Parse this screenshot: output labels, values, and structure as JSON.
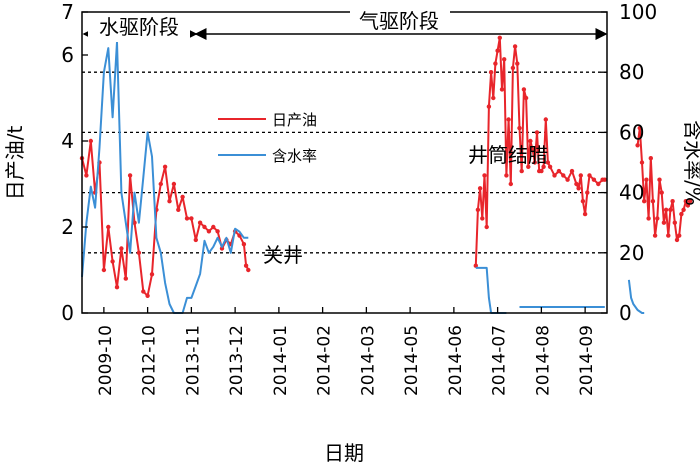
{
  "chart_data": {
    "type": "line",
    "xlabel": "日期",
    "ylabel_left": "日产油/t",
    "ylabel_right": "含水率/%",
    "ylim_left": [
      0,
      7
    ],
    "ylim_right": [
      0,
      100
    ],
    "left_ticks": [
      0,
      2,
      4,
      6,
      7
    ],
    "right_ticks": [
      0,
      20,
      40,
      60,
      80,
      100
    ],
    "categories": [
      "2009-10",
      "2012-10",
      "2013-11",
      "2013-12",
      "2014-01",
      "2014-02",
      "2014-03",
      "2014-05",
      "2014-06",
      "2014-07",
      "2014-08",
      "2014-09"
    ],
    "grid": "dashed horizontal",
    "legend_position": "upper-left-center",
    "annotations": {
      "stage_water": "水驱阶段",
      "stage_gas": "气驱阶段",
      "shut_in": "关井",
      "wellbore_wax": "井筒结腊"
    },
    "series": [
      {
        "name": "日产油",
        "axis": "left",
        "color": "#e8252b",
        "segments": [
          [
            [
              0.0,
              3.6
            ],
            [
              0.1,
              3.2
            ],
            [
              0.2,
              4.0
            ],
            [
              0.3,
              2.8
            ],
            [
              0.4,
              3.5
            ],
            [
              0.5,
              1.0
            ],
            [
              0.6,
              2.0
            ],
            [
              0.7,
              1.2
            ],
            [
              0.8,
              0.6
            ],
            [
              0.9,
              1.5
            ],
            [
              1.0,
              0.8
            ],
            [
              1.1,
              3.2
            ],
            [
              1.2,
              2.1
            ],
            [
              1.3,
              1.4
            ],
            [
              1.4,
              0.5
            ],
            [
              1.5,
              0.4
            ],
            [
              1.6,
              0.9
            ],
            [
              1.7,
              2.4
            ],
            [
              1.8,
              3.0
            ],
            [
              1.9,
              3.4
            ],
            [
              2.0,
              2.6
            ],
            [
              2.1,
              3.0
            ],
            [
              2.2,
              2.4
            ],
            [
              2.3,
              2.7
            ],
            [
              2.4,
              2.2
            ],
            [
              2.5,
              2.2
            ],
            [
              2.6,
              1.7
            ],
            [
              2.7,
              2.1
            ],
            [
              2.8,
              2.0
            ],
            [
              2.9,
              1.9
            ],
            [
              3.0,
              2.0
            ],
            [
              3.1,
              1.9
            ],
            [
              3.2,
              1.5
            ],
            [
              3.3,
              1.7
            ],
            [
              3.4,
              1.6
            ],
            [
              3.5,
              1.9
            ],
            [
              3.6,
              1.8
            ],
            [
              3.7,
              1.6
            ],
            [
              3.75,
              1.1
            ],
            [
              3.8,
              1.0
            ]
          ],
          [
            [
              9.0,
              1.1
            ],
            [
              9.05,
              2.4
            ],
            [
              9.1,
              2.9
            ],
            [
              9.15,
              2.2
            ],
            [
              9.2,
              3.2
            ],
            [
              9.25,
              2.0
            ],
            [
              9.3,
              4.8
            ],
            [
              9.35,
              5.6
            ],
            [
              9.4,
              5.0
            ],
            [
              9.45,
              5.8
            ],
            [
              9.5,
              6.1
            ],
            [
              9.55,
              6.4
            ],
            [
              9.6,
              5.2
            ],
            [
              9.65,
              5.9
            ],
            [
              9.7,
              3.2
            ],
            [
              9.75,
              4.5
            ],
            [
              9.8,
              3.0
            ],
            [
              9.85,
              5.7
            ],
            [
              9.9,
              6.2
            ],
            [
              9.95,
              5.8
            ],
            [
              10.0,
              4.3
            ],
            [
              10.05,
              3.3
            ],
            [
              10.1,
              5.2
            ],
            [
              10.15,
              5.0
            ],
            [
              10.2,
              3.4
            ],
            [
              10.25,
              4.0
            ],
            [
              10.3,
              3.8
            ],
            [
              10.35,
              3.5
            ],
            [
              10.4,
              4.2
            ],
            [
              10.45,
              3.3
            ],
            [
              10.5,
              3.3
            ],
            [
              10.55,
              3.4
            ],
            [
              10.6,
              4.5
            ],
            [
              10.65,
              3.5
            ],
            [
              10.7,
              3.4
            ],
            [
              10.8,
              3.2
            ],
            [
              10.9,
              3.3
            ],
            [
              11.0,
              3.2
            ],
            [
              11.1,
              3.1
            ],
            [
              11.2,
              3.3
            ],
            [
              11.3,
              3.0
            ],
            [
              11.35,
              2.9
            ],
            [
              11.4,
              3.2
            ],
            [
              11.45,
              2.6
            ],
            [
              11.5,
              2.3
            ],
            [
              11.55,
              2.8
            ],
            [
              11.6,
              3.2
            ],
            [
              11.7,
              3.1
            ],
            [
              11.8,
              3.0
            ],
            [
              11.9,
              3.1
            ],
            [
              11.95,
              3.1
            ]
          ],
          [
            [
              12.7,
              3.9
            ],
            [
              12.75,
              4.3
            ],
            [
              12.8,
              3.5
            ],
            [
              12.85,
              2.6
            ],
            [
              12.9,
              3.1
            ],
            [
              12.95,
              2.2
            ],
            [
              13.0,
              3.6
            ],
            [
              13.05,
              2.6
            ],
            [
              13.1,
              1.8
            ],
            [
              13.15,
              2.2
            ],
            [
              13.2,
              3.1
            ],
            [
              13.25,
              2.8
            ],
            [
              13.3,
              2.1
            ],
            [
              13.35,
              2.4
            ],
            [
              13.4,
              1.8
            ],
            [
              13.45,
              2.4
            ],
            [
              13.5,
              2.6
            ],
            [
              13.55,
              2.1
            ],
            [
              13.6,
              1.7
            ],
            [
              13.65,
              1.8
            ],
            [
              13.7,
              2.3
            ],
            [
              13.75,
              2.4
            ],
            [
              13.8,
              2.6
            ],
            [
              13.85,
              2.5
            ],
            [
              13.9,
              2.6
            ]
          ]
        ]
      },
      {
        "name": "含水率",
        "axis": "right",
        "color": "#3b8fd6",
        "segments": [
          [
            [
              0.0,
              12
            ],
            [
              0.1,
              30
            ],
            [
              0.2,
              42
            ],
            [
              0.3,
              35
            ],
            [
              0.4,
              55
            ],
            [
              0.5,
              80
            ],
            [
              0.6,
              88
            ],
            [
              0.7,
              65
            ],
            [
              0.8,
              90
            ],
            [
              0.9,
              40
            ],
            [
              1.0,
              30
            ],
            [
              1.1,
              20
            ],
            [
              1.2,
              40
            ],
            [
              1.3,
              30
            ],
            [
              1.4,
              45
            ],
            [
              1.5,
              60
            ],
            [
              1.6,
              52
            ],
            [
              1.7,
              25
            ],
            [
              1.8,
              20
            ],
            [
              1.9,
              10
            ],
            [
              2.0,
              3
            ],
            [
              2.1,
              0
            ],
            [
              2.2,
              0
            ],
            [
              2.3,
              0
            ],
            [
              2.4,
              5
            ],
            [
              2.5,
              5
            ],
            [
              2.6,
              9
            ],
            [
              2.7,
              13
            ],
            [
              2.8,
              24
            ],
            [
              2.9,
              20
            ],
            [
              3.0,
              22
            ],
            [
              3.1,
              25
            ],
            [
              3.2,
              22
            ],
            [
              3.3,
              25
            ],
            [
              3.4,
              20
            ],
            [
              3.5,
              28
            ],
            [
              3.6,
              27
            ],
            [
              3.7,
              25
            ],
            [
              3.8,
              25
            ]
          ],
          [
            [
              9.0,
              15
            ],
            [
              9.1,
              15
            ],
            [
              9.2,
              15
            ],
            [
              9.25,
              15
            ],
            [
              9.3,
              5
            ],
            [
              9.35,
              0
            ],
            [
              9.4,
              0
            ],
            [
              9.5,
              0
            ],
            [
              9.6,
              0
            ],
            [
              9.7,
              0
            ]
          ],
          [
            [
              10.0,
              2
            ],
            [
              10.5,
              2
            ],
            [
              11.0,
              2
            ],
            [
              11.5,
              2
            ],
            [
              11.95,
              2
            ]
          ],
          [
            [
              12.5,
              11
            ],
            [
              12.55,
              5
            ],
            [
              12.6,
              3
            ],
            [
              12.7,
              1
            ],
            [
              12.8,
              0
            ],
            [
              12.85,
              0
            ]
          ]
        ]
      }
    ]
  }
}
